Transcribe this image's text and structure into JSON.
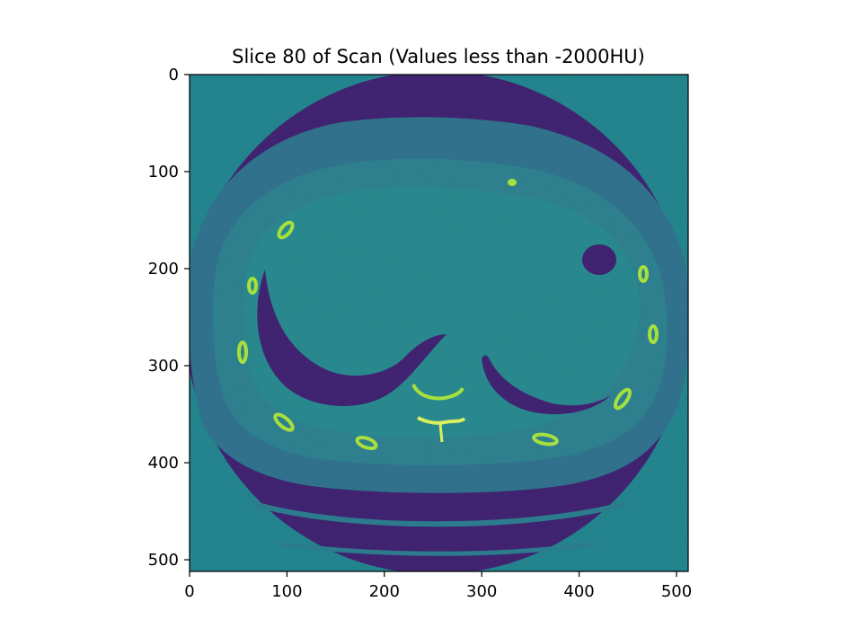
{
  "chart_data": {
    "type": "heatmap",
    "title": "Slice 80 of Scan (Values less than -2000HU)",
    "xlabel": "",
    "ylabel": "",
    "xlim": [
      0,
      512
    ],
    "ylim": [
      512,
      0
    ],
    "x_ticks": [
      0,
      100,
      200,
      300,
      400,
      500
    ],
    "y_ticks": [
      0,
      100,
      200,
      300,
      400,
      500
    ],
    "grid": false,
    "legend": "none",
    "colormap": "viridis",
    "image_content": "axial CT slice of the upper abdomen / lower thorax"
  },
  "colors": {
    "background_region": "#21828c",
    "soft_tissue": "#2a7a8c",
    "air_lung": "#3f1f6e",
    "bone": "#a8e23a",
    "bright_bone": "#dff25a",
    "axis": "#000000"
  }
}
